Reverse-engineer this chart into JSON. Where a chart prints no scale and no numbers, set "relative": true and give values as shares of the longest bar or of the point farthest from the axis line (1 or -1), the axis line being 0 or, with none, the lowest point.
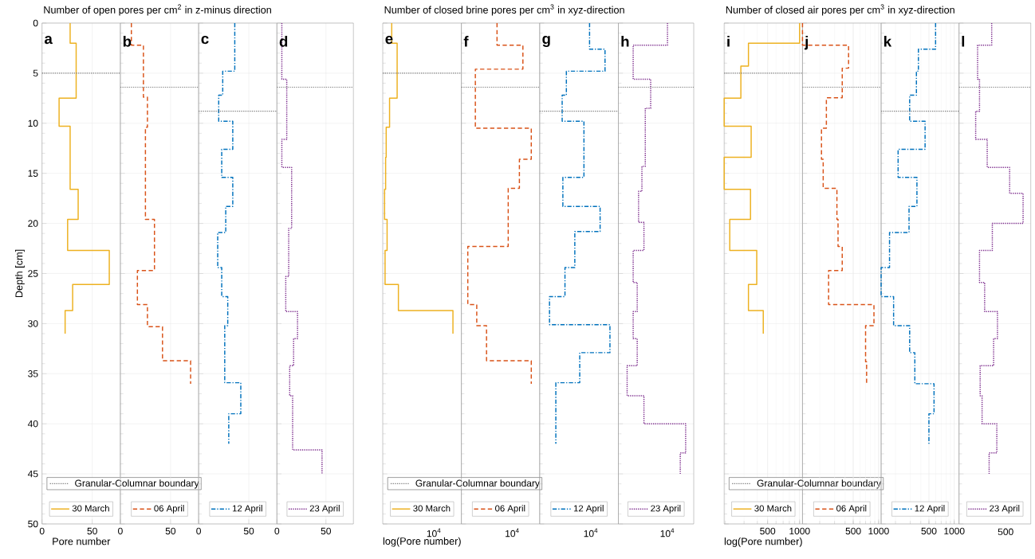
{
  "chart_data": [
    {
      "type": "step",
      "orientation": "horizontal",
      "title": "Number of open pores per cm$^{2}$ in z-minus direction",
      "xlabel": "Pore number",
      "ylabel": "Depth [cm]",
      "annotations": [
        "a"
      ],
      "xlim": [
        0,
        78
      ],
      "xticks": [
        0,
        50
      ],
      "ylim": [
        50,
        0
      ],
      "yticks": [
        0,
        5,
        10,
        15,
        20,
        25,
        30,
        35,
        40,
        45,
        50
      ],
      "grid": true,
      "legend": "bottom",
      "line_style": "solid",
      "series": [
        {
          "name": "30 March",
          "color": "#EDB120",
          "x": [
            0,
            2,
            7.5,
            10.3,
            16.6,
            19.6,
            22.7,
            26.1,
            28.7,
            31
          ],
          "values": [
            28,
            34,
            17,
            28,
            36,
            25.5,
            67,
            30.5,
            23,
            23
          ]
        }
      ],
      "ref_lines": [
        {
          "axis": "y",
          "value": 5,
          "label": "Granular-Columnar boundary",
          "color": "#808080",
          "line_style": "dotted"
        }
      ]
    },
    {
      "type": "step",
      "orientation": "horizontal",
      "annotations": [
        "b"
      ],
      "xlim": [
        0,
        78
      ],
      "xticks": [
        0,
        50
      ],
      "ylim": [
        50,
        0
      ],
      "yticks": [
        0,
        5,
        10,
        15,
        20,
        25,
        30,
        35,
        40,
        45,
        50
      ],
      "tick_labels": "x",
      "grid": true,
      "legend": "bottom",
      "line_style": "dashed",
      "series": [
        {
          "name": "06 April",
          "color": "#D95319",
          "x": [
            0,
            2.2,
            7.4,
            10.4,
            19.6,
            24.7,
            28.1,
            30.3,
            33.7,
            36
          ],
          "values": [
            11,
            23,
            27,
            25,
            34,
            17,
            27,
            42,
            70,
            70
          ]
        }
      ],
      "ref_lines": [
        {
          "axis": "y",
          "value": 6.4,
          "color": "#808080",
          "line_style": "dotted"
        }
      ]
    },
    {
      "type": "step",
      "orientation": "horizontal",
      "annotations": [
        "c"
      ],
      "xlim": [
        0,
        78
      ],
      "xticks": [
        0,
        50
      ],
      "ylim": [
        50,
        0
      ],
      "yticks": [
        0,
        5,
        10,
        15,
        20,
        25,
        30,
        35,
        40,
        45,
        50
      ],
      "tick_labels": "x",
      "grid": true,
      "legend": "bottom",
      "line_style": "dashdot",
      "series": [
        {
          "name": "12 April",
          "color": "#0072BD",
          "x": [
            0,
            4.8,
            7.2,
            9.8,
            12.6,
            15.4,
            18.3,
            20.9,
            24.4,
            27.3,
            30.2,
            35.9,
            39,
            42
          ],
          "values": [
            36,
            24,
            20,
            34,
            23,
            34,
            27,
            19,
            23,
            29,
            26,
            42,
            30,
            30
          ]
        }
      ],
      "ref_lines": [
        {
          "axis": "y",
          "value": 8.8,
          "color": "#808080",
          "line_style": "dotted"
        }
      ]
    },
    {
      "type": "step",
      "orientation": "horizontal",
      "annotations": [
        "d"
      ],
      "xlim": [
        0,
        78
      ],
      "xticks": [
        0,
        50
      ],
      "ylim": [
        50,
        0
      ],
      "yticks": [
        0,
        5,
        10,
        15,
        20,
        25,
        30,
        35,
        40,
        45,
        50
      ],
      "tick_labels": "x",
      "grid": true,
      "legend": "bottom",
      "line_style": "dotted",
      "series": [
        {
          "name": "23 April",
          "color": "#7E2F8E",
          "x": [
            0,
            5.6,
            11.6,
            14.4,
            20.5,
            25.3,
            28.8,
            31.5,
            34.2,
            37.2,
            42.6,
            45
          ],
          "values": [
            5,
            10,
            5,
            15,
            12,
            9,
            21,
            17,
            13,
            16,
            46,
            46
          ]
        }
      ],
      "ref_lines": [
        {
          "axis": "y",
          "value": 6.4,
          "color": "#808080",
          "line_style": "dotted"
        }
      ]
    },
    {
      "type": "step",
      "orientation": "horizontal",
      "title": "Number of closed brine pores per cm$^{3}$ in xyz-direction",
      "xlabel": "log(Pore number)",
      "annotations": [
        "e",
        "10$^{4}$"
      ],
      "relative": true,
      "ylim": [
        50,
        0
      ],
      "yticks": [
        0,
        5,
        10,
        15,
        20,
        25,
        30,
        35,
        40,
        45,
        50
      ],
      "tick_labels": "x",
      "grid": true,
      "legend": "bottom",
      "line_style": "solid",
      "series": [
        {
          "name": "30 March",
          "color": "#EDB120",
          "x": [
            0,
            2,
            7.5,
            10.4,
            13.4,
            16.6,
            19.6,
            22.7,
            26.1,
            28.7,
            31
          ],
          "values": [
            0.128,
            0.205,
            0.097,
            0.049,
            0.041,
            0.026,
            0.062,
            0.033,
            0.223,
            1,
            1
          ]
        }
      ],
      "ref_lines": [
        {
          "axis": "y",
          "value": 5,
          "label": "Granular-Columnar boundary",
          "color": "#808080",
          "line_style": "dotted"
        }
      ]
    },
    {
      "type": "step",
      "orientation": "horizontal",
      "annotations": [
        "f",
        "10$^{4}$"
      ],
      "relative": true,
      "ylim": [
        50,
        0
      ],
      "yticks": [
        0,
        5,
        10,
        15,
        20,
        25,
        30,
        35,
        40,
        45,
        50
      ],
      "tick_labels": "x",
      "grid": true,
      "legend": "bottom",
      "line_style": "dashed",
      "series": [
        {
          "name": "06 April",
          "color": "#D95319",
          "x": [
            0,
            2.2,
            4.6,
            10.5,
            13.6,
            16.5,
            22.3,
            28.1,
            30.2,
            33.7,
            36
          ],
          "values": [
            0.51,
            0.88,
            0.2,
            1,
            0.83,
            0.67,
            0.092,
            0.22,
            0.36,
            1,
            1
          ]
        }
      ],
      "ref_lines": [
        {
          "axis": "y",
          "value": 6.4,
          "color": "#808080",
          "line_style": "dotted"
        }
      ]
    },
    {
      "type": "step",
      "orientation": "horizontal",
      "annotations": [
        "g",
        "10$^{4}$"
      ],
      "relative": true,
      "ylim": [
        50,
        0
      ],
      "yticks": [
        0,
        5,
        10,
        15,
        20,
        25,
        30,
        35,
        40,
        45,
        50
      ],
      "tick_labels": "x",
      "grid": true,
      "legend": "bottom",
      "line_style": "dashdot",
      "series": [
        {
          "name": "12 April",
          "color": "#0072BD",
          "x": [
            0,
            2.6,
            4.8,
            7.2,
            9.8,
            15.4,
            18.3,
            20.8,
            24.4,
            27.3,
            30.1,
            32.9,
            35.9,
            42
          ],
          "values": [
            0.71,
            0.93,
            0.38,
            0.32,
            0.63,
            0.33,
            0.86,
            0.5,
            0.36,
            0.14,
            1,
            0.57,
            0.23,
            0.23
          ]
        }
      ],
      "ref_lines": [
        {
          "axis": "y",
          "value": 8.8,
          "color": "#808080",
          "line_style": "dotted"
        }
      ]
    },
    {
      "type": "step",
      "orientation": "horizontal",
      "annotations": [
        "h",
        "10$^{4}$"
      ],
      "relative": true,
      "ylim": [
        50,
        0
      ],
      "yticks": [
        0,
        5,
        10,
        15,
        20,
        25,
        30,
        35,
        40,
        45,
        50
      ],
      "tick_labels": "x",
      "grid": true,
      "legend": "bottom",
      "line_style": "dotted",
      "series": [
        {
          "name": "23 April",
          "color": "#7E2F8E",
          "x": [
            0,
            2.2,
            5.6,
            8.5,
            14.3,
            16.8,
            19.9,
            22.7,
            25.9,
            28.8,
            31.5,
            34.2,
            37.2,
            40,
            42.9,
            45
          ],
          "values": [
            0.73,
            0.22,
            0.48,
            0.4,
            0.35,
            0.3,
            0.38,
            0.22,
            0.28,
            0.22,
            0.28,
            0.13,
            0.38,
            1,
            0.92,
            0.92
          ]
        }
      ],
      "ref_lines": [
        {
          "axis": "y",
          "value": 6.4,
          "color": "#808080",
          "line_style": "dotted"
        }
      ]
    },
    {
      "type": "step",
      "orientation": "horizontal",
      "log": "x",
      "title": "Number of closed air pores per cm$^{3}$ in xyz-direction",
      "xlabel": "log(Pore number)",
      "annotations": [
        "i"
      ],
      "xlim": [
        195,
        1065
      ],
      "xticks": [
        500,
        1000
      ],
      "ylim": [
        50,
        0
      ],
      "yticks": [
        0,
        5,
        10,
        15,
        20,
        25,
        30,
        35,
        40,
        45,
        50
      ],
      "tick_labels": "x",
      "grid": true,
      "legend": "bottom",
      "line_style": "solid",
      "series": [
        {
          "name": "30 March",
          "color": "#EDB120",
          "x": [
            0,
            2,
            4.3,
            7.5,
            10.3,
            13.4,
            16.6,
            19.6,
            22.7,
            26.1,
            28.7,
            31
          ],
          "values": [
            1000,
            330,
            280,
            195,
            350,
            195,
            345,
            220,
            395,
            330,
            455,
            455
          ]
        }
      ],
      "ref_lines": [
        {
          "axis": "y",
          "value": 5,
          "label": "Granular-Columnar boundary",
          "color": "#808080",
          "line_style": "dotted"
        }
      ]
    },
    {
      "type": "step",
      "orientation": "horizontal",
      "log": "x",
      "annotations": [
        "j"
      ],
      "xlim": [
        125,
        1070
      ],
      "xticks": [
        500,
        1000
      ],
      "ylim": [
        50,
        0
      ],
      "yticks": [
        0,
        5,
        10,
        15,
        20,
        25,
        30,
        35,
        40,
        45,
        50
      ],
      "tick_labels": "x",
      "grid": true,
      "legend": "bottom",
      "line_style": "dashed",
      "series": [
        {
          "name": "06 April",
          "color": "#D95319",
          "x": [
            0,
            2.2,
            4.5,
            7.45,
            10.5,
            13.6,
            16.5,
            19.6,
            22.3,
            24.7,
            28.1,
            30.2,
            33.8,
            36
          ],
          "values": [
            125,
            440,
            370,
            240,
            210,
            220,
            320,
            330,
            370,
            255,
            880,
            700,
            720,
            720
          ]
        }
      ],
      "ref_lines": [
        {
          "axis": "y",
          "value": 6.4,
          "color": "#808080",
          "line_style": "dotted"
        }
      ]
    },
    {
      "type": "step",
      "orientation": "horizontal",
      "log": "x",
      "annotations": [
        "k"
      ],
      "xlim": [
        135,
        1140
      ],
      "xticks": [
        500,
        1000
      ],
      "ylim": [
        50,
        0
      ],
      "yticks": [
        0,
        5,
        10,
        15,
        20,
        25,
        30,
        35,
        40,
        45,
        50
      ],
      "tick_labels": "x",
      "grid": true,
      "legend": "bottom",
      "line_style": "dashdot",
      "series": [
        {
          "name": "12 April",
          "color": "#0072BD",
          "x": [
            0,
            2.6,
            4.8,
            7.2,
            9.8,
            12.6,
            15.4,
            18.3,
            20.9,
            24.4,
            27.3,
            30.2,
            32.9,
            36,
            39,
            42
          ],
          "values": [
            600,
            375,
            355,
            295,
            450,
            215,
            360,
            290,
            170,
            135,
            190,
            295,
            340,
            575,
            500,
            500
          ]
        }
      ],
      "ref_lines": [
        {
          "axis": "y",
          "value": 8.8,
          "color": "#808080",
          "line_style": "dotted"
        }
      ]
    },
    {
      "type": "step",
      "orientation": "horizontal",
      "annotations": [
        "l",
        "500"
      ],
      "relative": true,
      "ylim": [
        50,
        0
      ],
      "yticks": [
        0,
        5,
        10,
        15,
        20,
        25,
        30,
        35,
        40,
        45,
        50
      ],
      "tick_labels": "x",
      "grid": true,
      "legend": "bottom",
      "line_style": "dotted",
      "series": [
        {
          "name": "23 April",
          "color": "#7E2F8E",
          "x": [
            0,
            2.2,
            5.6,
            8.8,
            11.6,
            14.4,
            17,
            20,
            22.7,
            25.9,
            28.8,
            31.5,
            34.2,
            37.2,
            40,
            42.9,
            45
          ],
          "values": [
            0.51,
            0.29,
            0.32,
            0.26,
            0.44,
            0.79,
            1,
            0.52,
            0.32,
            0.4,
            0.6,
            0.54,
            0.33,
            0.36,
            0.59,
            0.47,
            0.47
          ]
        }
      ],
      "ref_lines": [
        {
          "axis": "y",
          "value": 6.4,
          "color": "#808080",
          "line_style": "dotted"
        }
      ]
    }
  ]
}
